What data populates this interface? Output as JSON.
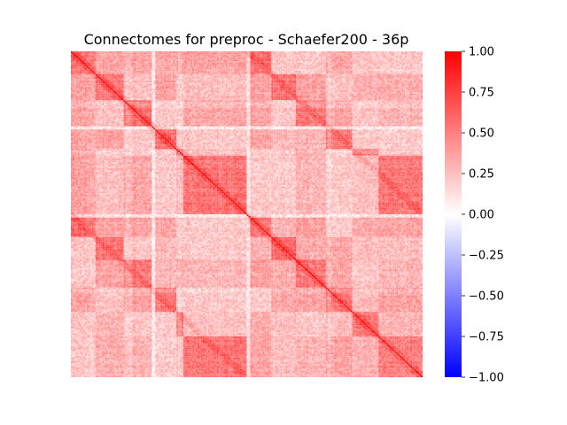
{
  "chart_data": {
    "type": "heatmap",
    "title": "Connectomes for preproc - Schaefer200 - 36p",
    "xlabel": "",
    "ylabel": "",
    "matrix_size": 200,
    "diagonal_value": 1.0,
    "value_range": [
      -1.0,
      1.0
    ],
    "colormap": "bwr",
    "colormap_colors": [
      "#0000ff",
      "#ffffff",
      "#ff0000"
    ],
    "colorbar": {
      "position": "right",
      "ticks": [
        1.0,
        0.75,
        0.5,
        0.25,
        0.0,
        -0.25,
        -0.5,
        -0.75,
        -1.0
      ],
      "tick_labels": [
        "1.00",
        "0.75",
        "0.50",
        "0.25",
        "0.00",
        "−0.25",
        "−0.50",
        "−0.75",
        "−1.00"
      ]
    },
    "axis_ticks_visible": false,
    "grid": false
  }
}
